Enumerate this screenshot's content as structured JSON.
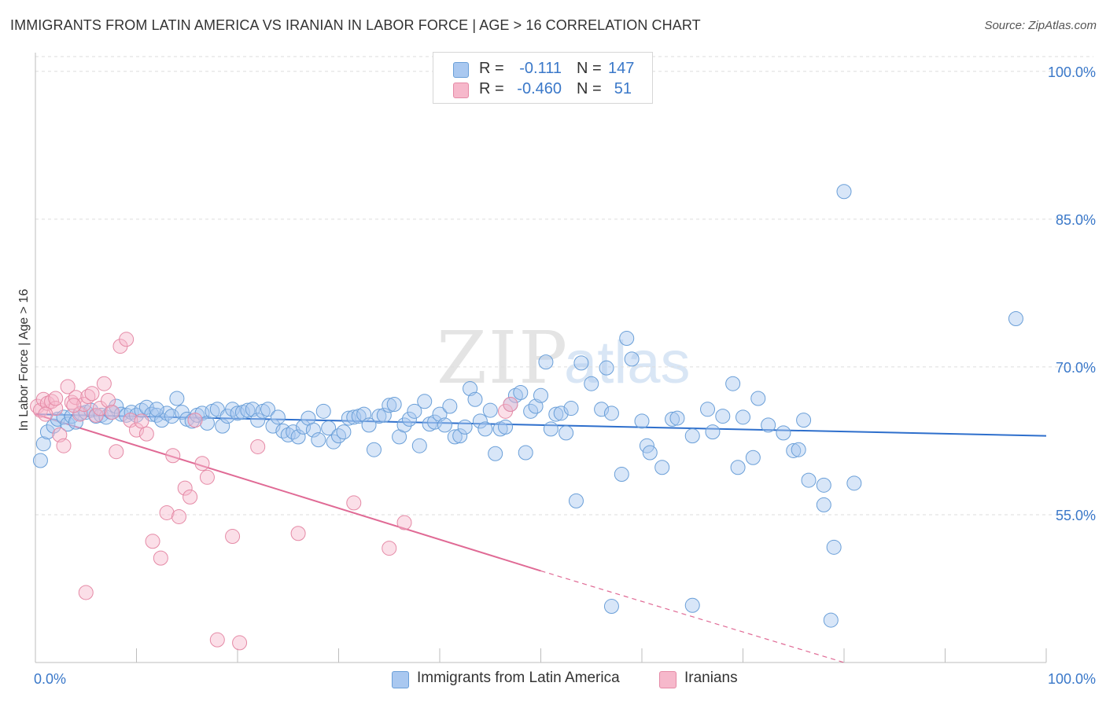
{
  "title": "IMMIGRANTS FROM LATIN AMERICA VS IRANIAN IN LABOR FORCE | AGE > 16 CORRELATION CHART",
  "source": "Source: ZipAtlas.com",
  "watermark": {
    "zip": "ZIP",
    "atlas": "atlas"
  },
  "legend": {
    "rows": [
      {
        "r_label": "R =",
        "r_value": "-0.111",
        "n_label": "N =",
        "n_value": "147",
        "color": "#a9c8f0",
        "border": "#6a9fd8"
      },
      {
        "r_label": "R =",
        "r_value": "-0.460",
        "n_label": "N =",
        "n_value": "51",
        "color": "#f6b8cb",
        "border": "#e58aa6"
      }
    ]
  },
  "bottom_legend": [
    {
      "label": "Immigrants from Latin America",
      "color": "#a9c8f0",
      "border": "#6a9fd8"
    },
    {
      "label": "Iranians",
      "color": "#f6b8cb",
      "border": "#e58aa6"
    }
  ],
  "chart_data": {
    "type": "scatter",
    "title": "IMMIGRANTS FROM LATIN AMERICA VS IRANIAN IN LABOR FORCE | AGE > 16 CORRELATION CHART",
    "xlabel": "",
    "ylabel": "In Labor Force | Age > 16",
    "xlim": [
      0,
      100
    ],
    "ylim": [
      40,
      101.5
    ],
    "x_tick_labels": [
      "0.0%",
      "100.0%"
    ],
    "y_ticks": [
      55,
      70,
      85,
      100
    ],
    "y_tick_labels": [
      "55.0%",
      "70.0%",
      "85.0%",
      "100.0%"
    ],
    "grid": true,
    "legend_position": "top-center",
    "series": [
      {
        "name": "Immigrants from Latin America",
        "color": "#a9c8f0",
        "stroke": "#6a9fd8",
        "trend": {
          "x": [
            0,
            100
          ],
          "y": [
            65.2,
            63.0
          ],
          "color": "#2e6fcc"
        },
        "points": [
          [
            0.5,
            60.5
          ],
          [
            0.8,
            62.2
          ],
          [
            1.2,
            63.4
          ],
          [
            1.8,
            64.0
          ],
          [
            2.2,
            64.7
          ],
          [
            2.8,
            64.9
          ],
          [
            3.2,
            64.2
          ],
          [
            3.6,
            65.0
          ],
          [
            4.0,
            64.4
          ],
          [
            4.5,
            65.3
          ],
          [
            5.0,
            65.4
          ],
          [
            5.5,
            65.6
          ],
          [
            6.0,
            65.0
          ],
          [
            6.5,
            65.1
          ],
          [
            7.0,
            64.9
          ],
          [
            7.5,
            65.4
          ],
          [
            8.0,
            66.0
          ],
          [
            8.5,
            65.2
          ],
          [
            9.0,
            65.1
          ],
          [
            9.5,
            65.4
          ],
          [
            10.0,
            65.1
          ],
          [
            10.5,
            65.6
          ],
          [
            11.0,
            65.9
          ],
          [
            11.5,
            65.2
          ],
          [
            12.0,
            65.1
          ],
          [
            12.5,
            64.6
          ],
          [
            13.0,
            65.3
          ],
          [
            13.5,
            65.0
          ],
          [
            14.0,
            66.8
          ],
          [
            14.5,
            65.4
          ],
          [
            15.0,
            64.7
          ],
          [
            15.5,
            64.5
          ],
          [
            16.0,
            65.1
          ],
          [
            16.5,
            65.3
          ],
          [
            17.0,
            64.3
          ],
          [
            17.5,
            65.5
          ],
          [
            18.0,
            65.7
          ],
          [
            18.5,
            64.0
          ],
          [
            19.0,
            65.0
          ],
          [
            19.5,
            65.7
          ],
          [
            20.0,
            65.3
          ],
          [
            20.5,
            65.4
          ],
          [
            21.0,
            65.6
          ],
          [
            21.5,
            65.7
          ],
          [
            22.0,
            64.6
          ],
          [
            22.5,
            65.5
          ],
          [
            23.0,
            65.7
          ],
          [
            23.5,
            64.0
          ],
          [
            24.0,
            64.9
          ],
          [
            24.5,
            63.5
          ],
          [
            25.0,
            63.1
          ],
          [
            25.5,
            63.4
          ],
          [
            26.0,
            62.9
          ],
          [
            26.5,
            63.9
          ],
          [
            27.0,
            64.8
          ],
          [
            27.5,
            63.6
          ],
          [
            28.0,
            62.6
          ],
          [
            28.5,
            65.5
          ],
          [
            29.0,
            63.8
          ],
          [
            29.5,
            62.4
          ],
          [
            30.0,
            63.0
          ],
          [
            30.5,
            63.4
          ],
          [
            31.0,
            64.8
          ],
          [
            31.5,
            64.9
          ],
          [
            32.0,
            65.0
          ],
          [
            32.5,
            65.2
          ],
          [
            33.0,
            64.1
          ],
          [
            33.5,
            61.6
          ],
          [
            34.0,
            65.0
          ],
          [
            34.5,
            65.1
          ],
          [
            35.0,
            66.1
          ],
          [
            35.5,
            66.2
          ],
          [
            36.0,
            62.9
          ],
          [
            36.5,
            64.1
          ],
          [
            37.0,
            64.7
          ],
          [
            37.5,
            65.5
          ],
          [
            38.0,
            62.0
          ],
          [
            38.5,
            66.5
          ],
          [
            39.0,
            64.2
          ],
          [
            39.5,
            64.4
          ],
          [
            40.0,
            65.2
          ],
          [
            40.5,
            64.1
          ],
          [
            41.0,
            66.0
          ],
          [
            41.5,
            62.9
          ],
          [
            42.0,
            63.0
          ],
          [
            42.5,
            63.9
          ],
          [
            43.0,
            67.8
          ],
          [
            43.5,
            66.7
          ],
          [
            44.0,
            64.5
          ],
          [
            44.5,
            63.7
          ],
          [
            45.0,
            65.6
          ],
          [
            45.5,
            61.2
          ],
          [
            46.0,
            63.7
          ],
          [
            46.5,
            63.9
          ],
          [
            47.0,
            66.2
          ],
          [
            47.5,
            67.1
          ],
          [
            48.0,
            67.4
          ],
          [
            48.5,
            61.3
          ],
          [
            49.0,
            65.5
          ],
          [
            49.5,
            66.0
          ],
          [
            50.0,
            67.1
          ],
          [
            50.5,
            70.5
          ],
          [
            51.0,
            63.7
          ],
          [
            51.5,
            65.2
          ],
          [
            52.0,
            65.3
          ],
          [
            52.5,
            63.3
          ],
          [
            53.0,
            65.8
          ],
          [
            53.5,
            56.4
          ],
          [
            54.0,
            70.4
          ],
          [
            55.0,
            68.3
          ],
          [
            56.0,
            65.7
          ],
          [
            56.5,
            69.9
          ],
          [
            57.0,
            65.3
          ],
          [
            58.0,
            59.1
          ],
          [
            58.5,
            72.9
          ],
          [
            59.0,
            70.8
          ],
          [
            60.0,
            64.5
          ],
          [
            60.5,
            62.0
          ],
          [
            60.8,
            61.3
          ],
          [
            62.0,
            59.8
          ],
          [
            63.0,
            64.7
          ],
          [
            63.5,
            64.8
          ],
          [
            65.0,
            63.0
          ],
          [
            66.5,
            65.7
          ],
          [
            67.0,
            63.4
          ],
          [
            68.0,
            65.0
          ],
          [
            69.0,
            68.3
          ],
          [
            69.5,
            59.8
          ],
          [
            70.0,
            64.9
          ],
          [
            71.0,
            60.8
          ],
          [
            71.5,
            66.8
          ],
          [
            72.5,
            64.1
          ],
          [
            74.0,
            63.3
          ],
          [
            75.0,
            61.5
          ],
          [
            75.5,
            61.6
          ],
          [
            76.0,
            64.6
          ],
          [
            76.5,
            58.5
          ],
          [
            78.0,
            56.0
          ],
          [
            79.0,
            51.7
          ],
          [
            78.7,
            44.3
          ],
          [
            80.0,
            87.8
          ],
          [
            97.0,
            74.9
          ],
          [
            57.0,
            45.7
          ],
          [
            65.0,
            45.8
          ],
          [
            78.0,
            58.0
          ],
          [
            81.0,
            58.2
          ],
          [
            12.0,
            65.7
          ]
        ]
      },
      {
        "name": "Iranians",
        "color": "#f6b8cb",
        "stroke": "#e58aa6",
        "trend": {
          "x": [
            0,
            50
          ],
          "y": [
            65.2,
            49.3
          ],
          "dash_to": [
            80,
            40
          ],
          "color": "#e06a95"
        },
        "points": [
          [
            0.2,
            66.0
          ],
          [
            0.5,
            65.6
          ],
          [
            0.8,
            66.7
          ],
          [
            1.2,
            66.3
          ],
          [
            1.6,
            66.5
          ],
          [
            2.0,
            65.8
          ],
          [
            2.4,
            63.1
          ],
          [
            2.8,
            62.0
          ],
          [
            3.2,
            68.0
          ],
          [
            3.6,
            66.4
          ],
          [
            4.0,
            66.9
          ],
          [
            4.4,
            65.2
          ],
          [
            4.8,
            66.2
          ],
          [
            5.2,
            67.0
          ],
          [
            5.6,
            67.3
          ],
          [
            6.0,
            65.1
          ],
          [
            6.4,
            65.8
          ],
          [
            6.8,
            68.3
          ],
          [
            7.2,
            66.6
          ],
          [
            7.6,
            65.4
          ],
          [
            8.0,
            61.4
          ],
          [
            8.4,
            72.1
          ],
          [
            9.0,
            72.8
          ],
          [
            9.4,
            64.6
          ],
          [
            10.0,
            63.6
          ],
          [
            10.5,
            64.5
          ],
          [
            11.0,
            63.2
          ],
          [
            11.6,
            52.3
          ],
          [
            12.4,
            50.6
          ],
          [
            13.0,
            55.2
          ],
          [
            13.6,
            61.0
          ],
          [
            14.2,
            54.8
          ],
          [
            14.8,
            57.7
          ],
          [
            15.3,
            56.8
          ],
          [
            15.8,
            64.6
          ],
          [
            16.5,
            60.2
          ],
          [
            17.0,
            58.8
          ],
          [
            18.0,
            42.3
          ],
          [
            19.5,
            52.8
          ],
          [
            20.2,
            42.0
          ],
          [
            22.0,
            61.9
          ],
          [
            26.0,
            53.1
          ],
          [
            31.5,
            56.2
          ],
          [
            35.0,
            51.6
          ],
          [
            36.5,
            54.2
          ],
          [
            46.5,
            65.5
          ],
          [
            47.0,
            66.2
          ],
          [
            5.0,
            47.1
          ],
          [
            2.0,
            66.8
          ],
          [
            1.0,
            65.2
          ],
          [
            3.8,
            66.1
          ]
        ]
      }
    ]
  }
}
